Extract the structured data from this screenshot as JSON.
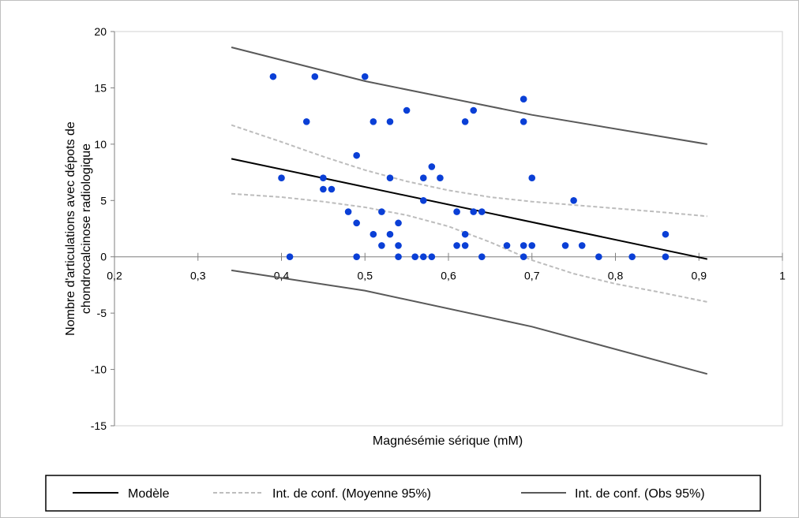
{
  "chart_data": {
    "type": "scatter",
    "xlabel": "Magnésémie sérique (mM)",
    "ylabel_line1": "Nombre d'articulations avec dépots de",
    "ylabel_line2": "chondrocalcinose  radiologique",
    "xlim": [
      0.2,
      1
    ],
    "ylim": [
      -15,
      20
    ],
    "x_ticks": [
      0.2,
      0.3,
      0.4,
      0.5,
      0.6,
      0.7,
      0.8,
      0.9,
      1
    ],
    "x_tick_labels": [
      "0,2",
      "0,3",
      "0,4",
      "0,5",
      "0,6",
      "0,7",
      "0,8",
      "0,9",
      "1"
    ],
    "y_ticks": [
      -15,
      -10,
      -5,
      0,
      5,
      10,
      15,
      20
    ],
    "y_tick_labels": [
      "-15",
      "-10",
      "-5",
      "0",
      "5",
      "10",
      "15",
      "20"
    ],
    "grid": false,
    "legend_position": "bottom",
    "colors": {
      "points": "#0a3fd6",
      "model": "#000000",
      "ci_mean": "#bdbdbd",
      "ci_obs": "#595959",
      "axis": "#7f7f7f"
    },
    "points": [
      {
        "x": 0.39,
        "y": 16
      },
      {
        "x": 0.4,
        "y": 7
      },
      {
        "x": 0.41,
        "y": 0
      },
      {
        "x": 0.43,
        "y": 12
      },
      {
        "x": 0.44,
        "y": 16
      },
      {
        "x": 0.45,
        "y": 7
      },
      {
        "x": 0.45,
        "y": 6
      },
      {
        "x": 0.46,
        "y": 6
      },
      {
        "x": 0.48,
        "y": 4
      },
      {
        "x": 0.49,
        "y": 9
      },
      {
        "x": 0.49,
        "y": 3
      },
      {
        "x": 0.49,
        "y": 0
      },
      {
        "x": 0.5,
        "y": 16
      },
      {
        "x": 0.51,
        "y": 12
      },
      {
        "x": 0.51,
        "y": 2
      },
      {
        "x": 0.52,
        "y": 4
      },
      {
        "x": 0.52,
        "y": 1
      },
      {
        "x": 0.53,
        "y": 12
      },
      {
        "x": 0.53,
        "y": 7
      },
      {
        "x": 0.53,
        "y": 2
      },
      {
        "x": 0.54,
        "y": 3
      },
      {
        "x": 0.54,
        "y": 1
      },
      {
        "x": 0.54,
        "y": 0
      },
      {
        "x": 0.55,
        "y": 13
      },
      {
        "x": 0.56,
        "y": 0
      },
      {
        "x": 0.57,
        "y": 7
      },
      {
        "x": 0.57,
        "y": 5
      },
      {
        "x": 0.57,
        "y": 0
      },
      {
        "x": 0.58,
        "y": 8
      },
      {
        "x": 0.58,
        "y": 0
      },
      {
        "x": 0.59,
        "y": 7
      },
      {
        "x": 0.61,
        "y": 4
      },
      {
        "x": 0.61,
        "y": 1
      },
      {
        "x": 0.62,
        "y": 12
      },
      {
        "x": 0.62,
        "y": 2
      },
      {
        "x": 0.62,
        "y": 1
      },
      {
        "x": 0.63,
        "y": 13
      },
      {
        "x": 0.63,
        "y": 4
      },
      {
        "x": 0.64,
        "y": 4
      },
      {
        "x": 0.64,
        "y": 0
      },
      {
        "x": 0.67,
        "y": 1
      },
      {
        "x": 0.69,
        "y": 14
      },
      {
        "x": 0.69,
        "y": 12
      },
      {
        "x": 0.69,
        "y": 1
      },
      {
        "x": 0.69,
        "y": 0
      },
      {
        "x": 0.7,
        "y": 7
      },
      {
        "x": 0.7,
        "y": 1
      },
      {
        "x": 0.74,
        "y": 1
      },
      {
        "x": 0.75,
        "y": 5
      },
      {
        "x": 0.76,
        "y": 1
      },
      {
        "x": 0.78,
        "y": 0
      },
      {
        "x": 0.82,
        "y": 0
      },
      {
        "x": 0.86,
        "y": 2
      },
      {
        "x": 0.86,
        "y": 0
      }
    ],
    "series": [
      {
        "name": "Modèle",
        "style": "solid",
        "color": "#000000",
        "x": [
          0.34,
          0.91
        ],
        "y": [
          8.7,
          -0.2
        ]
      },
      {
        "name": "Int. de conf. (Moyenne 95%)",
        "style": "dashed",
        "color": "#bdbdbd",
        "band": "upper",
        "x": [
          0.34,
          0.4,
          0.45,
          0.5,
          0.55,
          0.6,
          0.65,
          0.7,
          0.75,
          0.8,
          0.85,
          0.91
        ],
        "y": [
          11.7,
          10.2,
          8.9,
          7.7,
          6.7,
          5.9,
          5.3,
          4.9,
          4.6,
          4.3,
          4.0,
          3.6
        ]
      },
      {
        "name": "Int. de conf. (Moyenne 95%)",
        "style": "dashed",
        "color": "#bdbdbd",
        "band": "lower",
        "x": [
          0.34,
          0.4,
          0.45,
          0.5,
          0.55,
          0.6,
          0.65,
          0.7,
          0.75,
          0.8,
          0.85,
          0.91
        ],
        "y": [
          5.6,
          5.3,
          4.9,
          4.4,
          3.7,
          2.7,
          1.3,
          -0.3,
          -1.5,
          -2.4,
          -3.1,
          -4.0
        ]
      },
      {
        "name": "Int. de conf. (Obs 95%)",
        "style": "solid",
        "color": "#595959",
        "band": "upper",
        "x": [
          0.34,
          0.5,
          0.7,
          0.91
        ],
        "y": [
          18.6,
          15.6,
          12.6,
          10.0
        ]
      },
      {
        "name": "Int. de conf. (Obs 95%)",
        "style": "solid",
        "color": "#595959",
        "band": "lower",
        "x": [
          0.34,
          0.5,
          0.7,
          0.91
        ],
        "y": [
          -1.2,
          -3.0,
          -6.2,
          -10.4
        ]
      }
    ],
    "legend": [
      {
        "label": "Modèle",
        "style": "solid",
        "color": "#000000"
      },
      {
        "label": "Int. de conf. (Moyenne 95%)",
        "style": "dashed",
        "color": "#bdbdbd"
      },
      {
        "label": "Int. de conf. (Obs 95%)",
        "style": "solid",
        "color": "#595959"
      }
    ]
  }
}
